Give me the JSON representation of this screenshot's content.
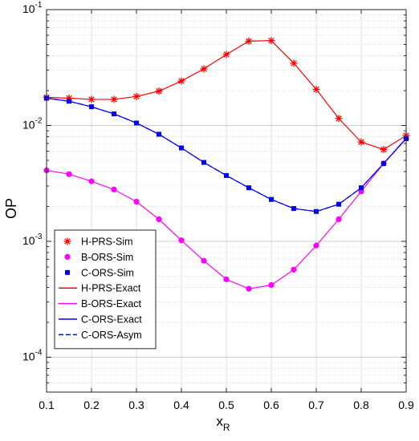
{
  "chart_data": {
    "type": "line",
    "title": "",
    "xlabel": "x",
    "xlabel_sub": "R",
    "ylabel": "OP",
    "xlim": [
      0.1,
      0.9
    ],
    "ylim": [
      5e-05,
      0.1
    ],
    "yscale": "log",
    "grid": true,
    "legend_position": "bottom-left",
    "x_ticks": [
      "0.1",
      "0.2",
      "0.3",
      "0.4",
      "0.5",
      "0.6",
      "0.7",
      "0.8",
      "0.9"
    ],
    "y_ticks": [
      {
        "base": "10",
        "exp": "-1"
      },
      {
        "base": "10",
        "exp": "-2"
      },
      {
        "base": "10",
        "exp": "-3"
      },
      {
        "base": "10",
        "exp": "-4"
      }
    ],
    "x": [
      0.1,
      0.15,
      0.2,
      0.25,
      0.3,
      0.35,
      0.4,
      0.45,
      0.5,
      0.55,
      0.6,
      0.65,
      0.7,
      0.75,
      0.8,
      0.85,
      0.9
    ],
    "series": [
      {
        "name": "H-PRS-Sim",
        "style": "marker",
        "marker": "asterisk",
        "color": "#ff0000",
        "values": [
          0.0175,
          0.0172,
          0.0168,
          0.0168,
          0.0178,
          0.0198,
          0.0242,
          0.0308,
          0.041,
          0.0535,
          0.054,
          0.0345,
          0.0205,
          0.0115,
          0.0072,
          0.0062,
          0.0082
        ]
      },
      {
        "name": "B-ORS-Sim",
        "style": "marker",
        "marker": "circle",
        "color": "#ff00ff",
        "values": [
          0.0041,
          0.0038,
          0.0033,
          0.0028,
          0.0022,
          0.00155,
          0.00102,
          0.00068,
          0.00047,
          0.00039,
          0.00042,
          0.00057,
          0.00092,
          0.00155,
          0.0027,
          0.0047,
          0.0078
        ]
      },
      {
        "name": "C-ORS-Sim",
        "style": "marker",
        "marker": "square",
        "color": "#0000ff",
        "values": [
          0.0172,
          0.0162,
          0.0145,
          0.0126,
          0.0105,
          0.0084,
          0.0064,
          0.0048,
          0.0037,
          0.0029,
          0.0023,
          0.00192,
          0.00181,
          0.00209,
          0.0029,
          0.0047,
          0.0077
        ]
      },
      {
        "name": "H-PRS-Exact",
        "style": "solid",
        "color": "#ff0000",
        "values": [
          0.0175,
          0.0172,
          0.0168,
          0.0168,
          0.0178,
          0.0198,
          0.0242,
          0.0308,
          0.041,
          0.0535,
          0.054,
          0.0345,
          0.0205,
          0.0115,
          0.0072,
          0.0062,
          0.0082
        ]
      },
      {
        "name": "B-ORS-Exact",
        "style": "solid",
        "color": "#ff00ff",
        "values": [
          0.0041,
          0.0038,
          0.0033,
          0.0028,
          0.0022,
          0.00155,
          0.00102,
          0.00068,
          0.00047,
          0.00039,
          0.00042,
          0.00057,
          0.00092,
          0.00155,
          0.0027,
          0.0047,
          0.0078
        ]
      },
      {
        "name": "C-ORS-Exact",
        "style": "solid",
        "color": "#0000ff",
        "values": [
          0.0172,
          0.0162,
          0.0145,
          0.0126,
          0.0105,
          0.0084,
          0.0064,
          0.0048,
          0.0037,
          0.0029,
          0.0023,
          0.00192,
          0.00181,
          0.00209,
          0.0029,
          0.0047,
          0.0077
        ]
      },
      {
        "name": "C-ORS-Asym",
        "style": "dashed",
        "color": "#0000ff",
        "values": [
          0.0172,
          0.0162,
          0.0145,
          0.0126,
          0.0105,
          0.0084,
          0.0064,
          0.0048,
          0.0037,
          0.0029,
          0.0023,
          0.00192,
          0.00181,
          0.00209,
          0.0029,
          0.0047,
          0.0077
        ]
      }
    ]
  }
}
